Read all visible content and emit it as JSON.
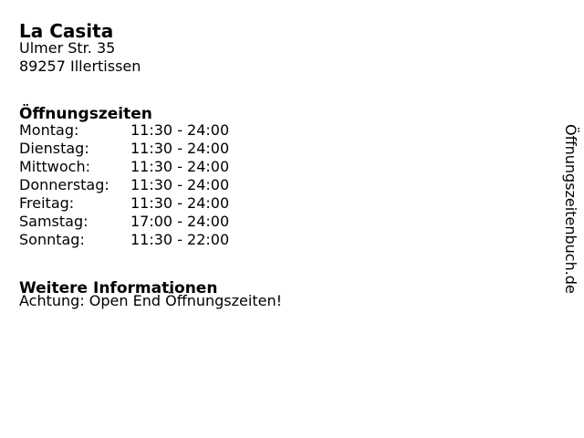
{
  "page": {
    "background": "#ffffff",
    "text_color": "#000000"
  },
  "business": {
    "name": "La Casita",
    "address_line1": "Ulmer Str. 35",
    "address_line2": "89257 Illertissen"
  },
  "hours": {
    "heading": "Öffnungszeiten",
    "rows": [
      {
        "day": "Montag:",
        "time": "11:30 - 24:00"
      },
      {
        "day": "Dienstag:",
        "time": "11:30 - 24:00"
      },
      {
        "day": "Mittwoch:",
        "time": "11:30 - 24:00"
      },
      {
        "day": "Donnerstag:",
        "time": "11:30 - 24:00"
      },
      {
        "day": "Freitag:",
        "time": "11:30 - 24:00"
      },
      {
        "day": "Samstag:",
        "time": "17:00 - 24:00"
      },
      {
        "day": "Sonntag:",
        "time": "11:30 - 22:00"
      }
    ]
  },
  "info": {
    "heading": "Weitere Informationen",
    "note": "Achtung: Open End Öffnungszeiten!"
  },
  "watermark": {
    "label": "Öffnungszeitenbuch.de"
  }
}
